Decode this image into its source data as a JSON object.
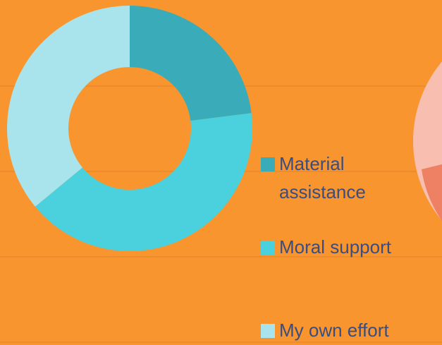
{
  "chart_data": {
    "type": "donut",
    "categories": [
      "Material assistance",
      "Moral support",
      "My own effort"
    ],
    "values": [
      23,
      41,
      36
    ],
    "colors": [
      "#3aacb9",
      "#4bd0de",
      "#a9e4ec"
    ]
  }
}
